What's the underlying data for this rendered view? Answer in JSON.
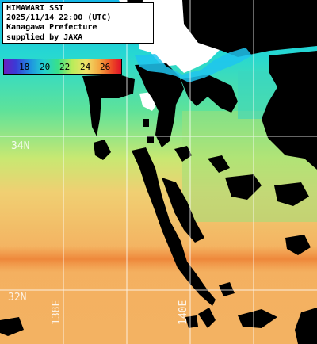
{
  "title": {
    "line1": "HIMAWARI SST",
    "line2": "2025/11/14 22:00 (UTC)",
    "line3": "Kanagawa Prefecture",
    "line4": "supplied by JAXA"
  },
  "colorbar": {
    "ticks": [
      "18",
      "20",
      "22",
      "24",
      "26"
    ],
    "colors": [
      "#6a1fbf",
      "#1f8fe0",
      "#22d0d0",
      "#b8ec5a",
      "#f0e268",
      "#f4a23e",
      "#e0102a"
    ]
  },
  "gridlabels": {
    "lat_34": "34N",
    "lat_32": "32N",
    "lon_138": "138E",
    "lon_140": "140E"
  },
  "colors": {
    "land": "#ffffff",
    "cloud_mask": "#000000",
    "grid": "#ffffff"
  }
}
